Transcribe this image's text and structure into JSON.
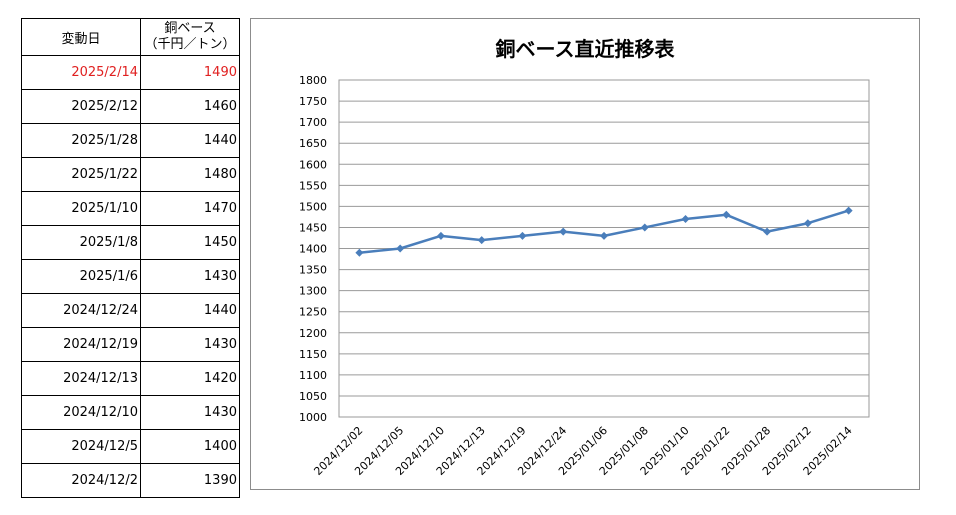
{
  "table": {
    "header": {
      "date": "変動日",
      "value_line1": "銅ベース",
      "value_line2": "（千円／トン）"
    },
    "rows": [
      {
        "date": "2025/2/14",
        "value": "1490",
        "highlight": true
      },
      {
        "date": "2025/2/12",
        "value": "1460"
      },
      {
        "date": "2025/1/28",
        "value": "1440"
      },
      {
        "date": "2025/1/22",
        "value": "1480"
      },
      {
        "date": "2025/1/10",
        "value": "1470"
      },
      {
        "date": "2025/1/8",
        "value": "1450"
      },
      {
        "date": "2025/1/6",
        "value": "1430"
      },
      {
        "date": "2024/12/24",
        "value": "1440"
      },
      {
        "date": "2024/12/19",
        "value": "1430"
      },
      {
        "date": "2024/12/13",
        "value": "1420"
      },
      {
        "date": "2024/12/10",
        "value": "1430"
      },
      {
        "date": "2024/12/5",
        "value": "1400"
      },
      {
        "date": "2024/12/2",
        "value": "1390"
      }
    ],
    "highlight_color": "#e02020"
  },
  "chart_data": {
    "type": "line",
    "title": "銅ベース直近推移表",
    "xlabel": "",
    "ylabel": "",
    "categories": [
      "2024/12/02",
      "2024/12/05",
      "2024/12/10",
      "2024/12/13",
      "2024/12/19",
      "2024/12/24",
      "2025/01/06",
      "2025/01/08",
      "2025/01/10",
      "2025/01/22",
      "2025/01/28",
      "2025/02/12",
      "2025/02/14"
    ],
    "series": [
      {
        "values": [
          1390,
          1400,
          1430,
          1420,
          1430,
          1440,
          1430,
          1450,
          1470,
          1480,
          1440,
          1460,
          1490
        ]
      }
    ],
    "ylim": [
      1000,
      1800
    ],
    "ytick_step": 50,
    "grid": true,
    "legend": "none",
    "line_color": "#4a7ebb"
  }
}
